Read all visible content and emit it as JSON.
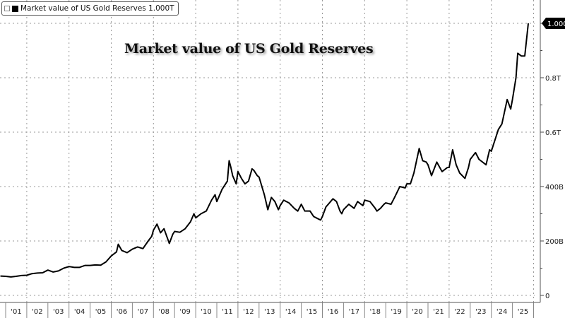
{
  "chart_data": {
    "type": "line",
    "title": "Market value of US Gold Reserves",
    "legend": {
      "label": "Market value of US Gold Reserves 1.000T",
      "placement": "top-left",
      "color": "#000000"
    },
    "last_value_label": "1.000T",
    "y_unit": "USD",
    "ylim": [
      0,
      1000
    ],
    "y_ticks": [
      {
        "v": 0,
        "label": "0"
      },
      {
        "v": 200,
        "label": "200B"
      },
      {
        "v": 400,
        "label": "400B"
      },
      {
        "v": 600,
        "label": "0.6T"
      },
      {
        "v": 800,
        "label": "0.8T"
      },
      {
        "v": 1000,
        "label": "1.000T"
      }
    ],
    "x_tick_labels": [
      "'01",
      "'02",
      "'03",
      "'04",
      "'05",
      "'06",
      "'07",
      "'08",
      "'09",
      "'10",
      "'11",
      "'12",
      "'13",
      "'14",
      "'15",
      "'16",
      "'17",
      "'18",
      "'19",
      "'20",
      "'21",
      "'22",
      "'23",
      "'24",
      "'25"
    ],
    "grid": true,
    "series": [
      {
        "name": "Market value of US Gold Reserves",
        "color": "#000000",
        "unit": "billions USD",
        "points": [
          [
            "2000-10",
            71
          ],
          [
            "2001-01",
            70
          ],
          [
            "2001-04",
            68
          ],
          [
            "2001-07",
            70
          ],
          [
            "2001-10",
            73
          ],
          [
            "2002-01",
            74
          ],
          [
            "2002-04",
            80
          ],
          [
            "2002-07",
            82
          ],
          [
            "2002-10",
            83
          ],
          [
            "2003-01",
            93
          ],
          [
            "2003-04",
            86
          ],
          [
            "2003-07",
            90
          ],
          [
            "2003-10",
            100
          ],
          [
            "2004-01",
            106
          ],
          [
            "2004-04",
            103
          ],
          [
            "2004-07",
            103
          ],
          [
            "2004-10",
            110
          ],
          [
            "2005-01",
            110
          ],
          [
            "2005-04",
            112
          ],
          [
            "2005-07",
            111
          ],
          [
            "2005-10",
            123
          ],
          [
            "2006-01",
            145
          ],
          [
            "2006-04",
            160
          ],
          [
            "2006-05",
            188
          ],
          [
            "2006-07",
            165
          ],
          [
            "2006-10",
            157
          ],
          [
            "2007-01",
            170
          ],
          [
            "2007-04",
            178
          ],
          [
            "2007-07",
            172
          ],
          [
            "2007-10",
            200
          ],
          [
            "2007-12",
            217
          ],
          [
            "2008-01",
            240
          ],
          [
            "2008-03",
            262
          ],
          [
            "2008-05",
            230
          ],
          [
            "2008-07",
            245
          ],
          [
            "2008-10",
            191
          ],
          [
            "2008-12",
            225
          ],
          [
            "2009-01",
            235
          ],
          [
            "2009-04",
            232
          ],
          [
            "2009-07",
            245
          ],
          [
            "2009-10",
            270
          ],
          [
            "2009-12",
            300
          ],
          [
            "2010-01",
            285
          ],
          [
            "2010-04",
            300
          ],
          [
            "2010-07",
            310
          ],
          [
            "2010-10",
            350
          ],
          [
            "2010-12",
            370
          ],
          [
            "2011-01",
            345
          ],
          [
            "2011-04",
            390
          ],
          [
            "2011-07",
            420
          ],
          [
            "2011-08",
            495
          ],
          [
            "2011-09",
            470
          ],
          [
            "2011-10",
            440
          ],
          [
            "2011-12",
            410
          ],
          [
            "2012-01",
            455
          ],
          [
            "2012-03",
            430
          ],
          [
            "2012-05",
            410
          ],
          [
            "2012-07",
            420
          ],
          [
            "2012-09",
            465
          ],
          [
            "2012-10",
            460
          ],
          [
            "2012-12",
            440
          ],
          [
            "2013-01",
            435
          ],
          [
            "2013-04",
            370
          ],
          [
            "2013-06",
            315
          ],
          [
            "2013-08",
            360
          ],
          [
            "2013-10",
            345
          ],
          [
            "2013-12",
            315
          ],
          [
            "2014-01",
            330
          ],
          [
            "2014-03",
            350
          ],
          [
            "2014-06",
            340
          ],
          [
            "2014-09",
            320
          ],
          [
            "2014-11",
            310
          ],
          [
            "2015-01",
            335
          ],
          [
            "2015-03",
            310
          ],
          [
            "2015-06",
            310
          ],
          [
            "2015-08",
            290
          ],
          [
            "2015-11",
            280
          ],
          [
            "2015-12",
            277
          ],
          [
            "2016-01",
            290
          ],
          [
            "2016-03",
            325
          ],
          [
            "2016-07",
            355
          ],
          [
            "2016-09",
            345
          ],
          [
            "2016-11",
            310
          ],
          [
            "2016-12",
            300
          ],
          [
            "2017-01",
            315
          ],
          [
            "2017-04",
            335
          ],
          [
            "2017-07",
            320
          ],
          [
            "2017-09",
            345
          ],
          [
            "2017-12",
            330
          ],
          [
            "2018-01",
            350
          ],
          [
            "2018-04",
            345
          ],
          [
            "2018-07",
            320
          ],
          [
            "2018-08",
            310
          ],
          [
            "2018-10",
            320
          ],
          [
            "2018-12",
            335
          ],
          [
            "2019-01",
            340
          ],
          [
            "2019-04",
            335
          ],
          [
            "2019-06",
            360
          ],
          [
            "2019-09",
            400
          ],
          [
            "2019-12",
            395
          ],
          [
            "2020-01",
            410
          ],
          [
            "2020-03",
            410
          ],
          [
            "2020-05",
            450
          ],
          [
            "2020-08",
            540
          ],
          [
            "2020-10",
            495
          ],
          [
            "2020-12",
            490
          ],
          [
            "2021-01",
            480
          ],
          [
            "2021-03",
            440
          ],
          [
            "2021-06",
            490
          ],
          [
            "2021-09",
            455
          ],
          [
            "2021-12",
            470
          ],
          [
            "2022-01",
            470
          ],
          [
            "2022-03",
            535
          ],
          [
            "2022-05",
            480
          ],
          [
            "2022-07",
            450
          ],
          [
            "2022-10",
            430
          ],
          [
            "2022-12",
            470
          ],
          [
            "2023-01",
            500
          ],
          [
            "2023-04",
            525
          ],
          [
            "2023-06",
            500
          ],
          [
            "2023-10",
            480
          ],
          [
            "2023-12",
            535
          ],
          [
            "2024-01",
            530
          ],
          [
            "2024-03",
            570
          ],
          [
            "2024-05",
            610
          ],
          [
            "2024-07",
            630
          ],
          [
            "2024-10",
            720
          ],
          [
            "2024-12",
            685
          ],
          [
            "2025-01",
            720
          ],
          [
            "2025-03",
            800
          ],
          [
            "2025-04",
            890
          ],
          [
            "2025-06",
            880
          ],
          [
            "2025-08",
            880
          ],
          [
            "2025-10",
            1000
          ]
        ]
      }
    ]
  }
}
